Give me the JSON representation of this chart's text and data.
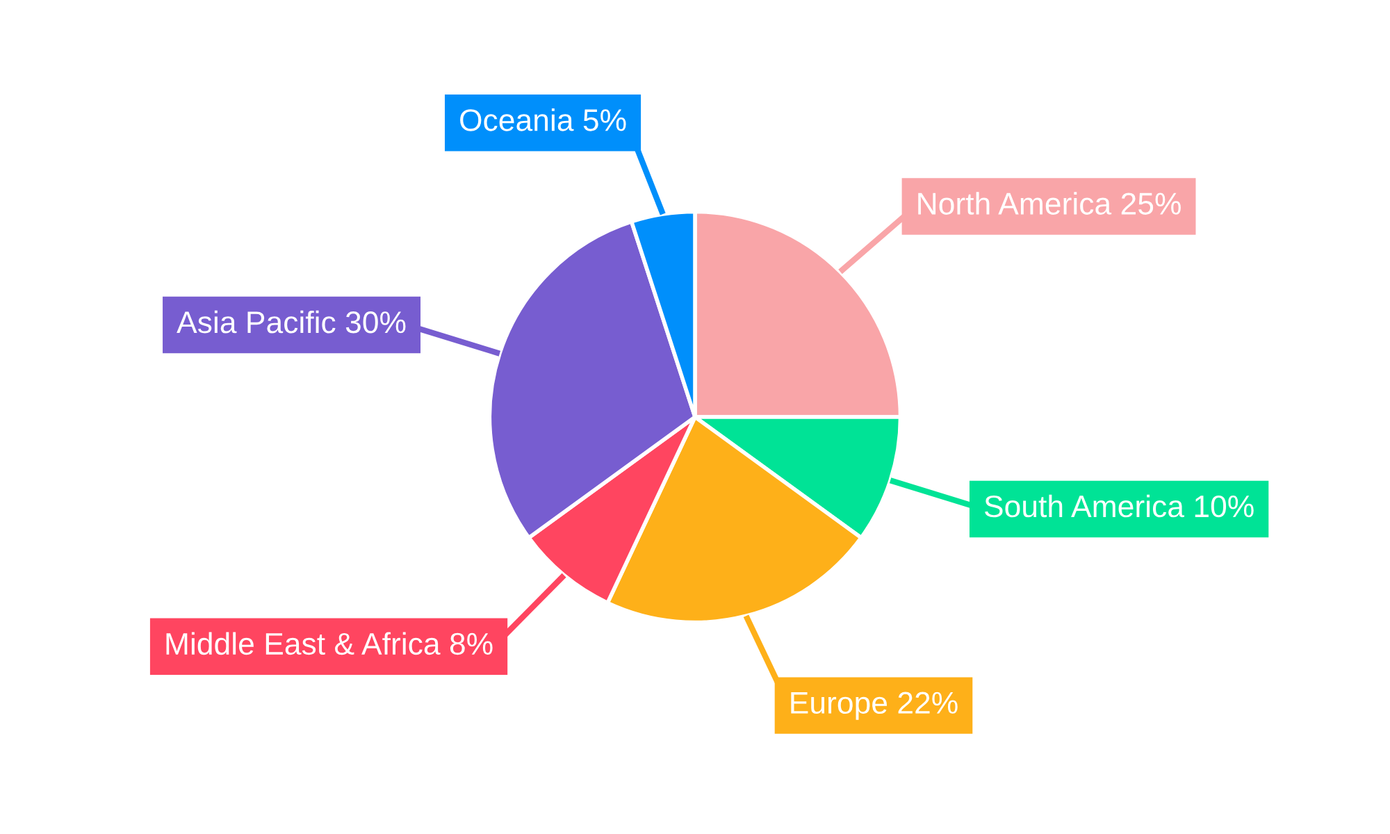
{
  "chart_data": {
    "type": "pie",
    "categories": [
      "North America",
      "South America",
      "Europe",
      "Middle East & Africa",
      "Asia Pacific",
      "Oceania"
    ],
    "values": [
      25,
      10,
      22,
      8,
      30,
      5
    ],
    "value_labels": [
      "25%",
      "10%",
      "22%",
      "8%",
      "30%",
      "5%"
    ],
    "colors": [
      "#f9a5a8",
      "#00e396",
      "#feb019",
      "#ff4560",
      "#775dd0",
      "#008ffb"
    ],
    "legend": false
  }
}
